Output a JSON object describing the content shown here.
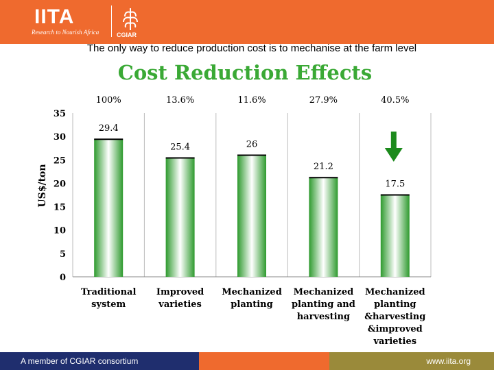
{
  "header": {
    "logo_text": "IITA",
    "tagline": "Research to Nourish Africa",
    "cgiar_label": "CGIAR"
  },
  "subtitle": "The only way to reduce production cost is to mechanise at the farm level",
  "footer": {
    "left_text": "A member of CGIAR consortium",
    "right_text": "www.iita.org"
  },
  "colors": {
    "header_orange": "#ef6a2e",
    "title_green": "#3aa935",
    "bar_green": "#2e9a2e",
    "arrow_green": "#1c8a1c",
    "footer_blue": "#1f2e6e",
    "footer_olive": "#9a8a3a"
  },
  "chart_data": {
    "type": "bar",
    "title": "Cost Reduction Effects",
    "ylabel": "US$/ton",
    "xlabel": "",
    "ylim": [
      0,
      35
    ],
    "yticks": [
      0,
      5,
      10,
      15,
      20,
      25,
      30,
      35
    ],
    "categories": [
      [
        "Traditional",
        "system"
      ],
      [
        "Improved",
        "varieties"
      ],
      [
        "Mechanized",
        "planting"
      ],
      [
        "Mechanized",
        "planting and",
        "harvesting"
      ],
      [
        "Mechanized",
        "planting",
        "&harvesting",
        "&improved",
        "varieties"
      ]
    ],
    "values": [
      29.4,
      25.4,
      26,
      21.2,
      17.5
    ],
    "value_labels": [
      "29.4",
      "25.4",
      "26",
      "21.2",
      "17.5"
    ],
    "top_labels": [
      "100%",
      "13.6%",
      "11.6%",
      "27.9%",
      "40.5%"
    ],
    "arrow_on_category": 4
  }
}
